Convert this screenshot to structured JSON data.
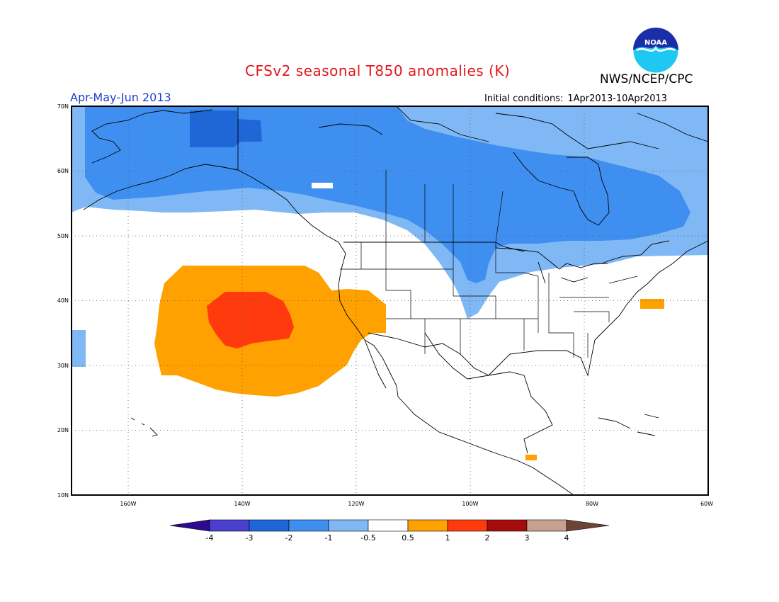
{
  "header": {
    "title": "CFSv2 seasonal T850 anomalies (K)",
    "agency": "NWS/NCEP/CPC",
    "period": "Apr-May-Jun 2013",
    "initial_conditions_label": "Initial conditions:",
    "initial_conditions_range": "1Apr2013-10Apr2013",
    "logo_text": "NOAA"
  },
  "map": {
    "lon_range": [
      -172,
      -60
    ],
    "lat_range": [
      10,
      70
    ],
    "lat_labels": [
      "70N",
      "60N",
      "50N",
      "40N",
      "30N",
      "20N",
      "10N"
    ],
    "lon_labels": [
      "160W",
      "140W",
      "120W",
      "100W",
      "80W",
      "60W"
    ],
    "grid": "dotted"
  },
  "colorbar": {
    "labels": [
      "-4",
      "-3",
      "-2",
      "-1",
      "-0.5",
      "0.5",
      "1",
      "2",
      "3",
      "4"
    ],
    "colors": [
      "#2d0b8f",
      "#4b3fd0",
      "#1f66d6",
      "#3f8ff0",
      "#7fb8f5",
      "#ffffff",
      "#ffa100",
      "#ff3a0d",
      "#a50d0d",
      "#c7a18f",
      "#6b4437"
    ]
  }
}
